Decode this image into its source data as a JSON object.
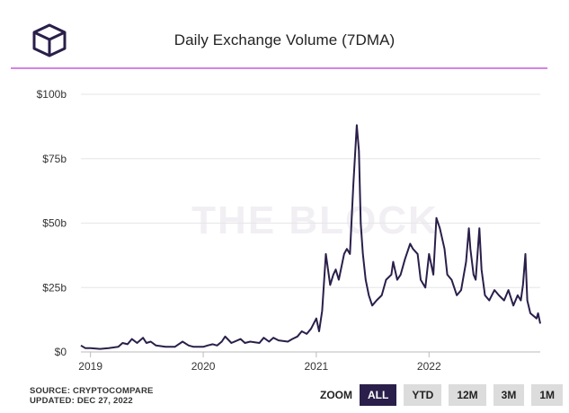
{
  "title": "Daily Exchange Volume (7DMA)",
  "watermark": "THE BLOCK",
  "colors": {
    "line": "#2a1f4a",
    "divider": "#d583e6",
    "grid": "#e6e6e6",
    "zoom_active": "#2a1f4a",
    "zoom_inactive": "#dcdcdc"
  },
  "source": {
    "line1": "SOURCE: CRYPTOCOMPARE",
    "line2": "UPDATED: DEC 27, 2022"
  },
  "zoom": {
    "label": "ZOOM",
    "buttons": [
      "ALL",
      "YTD",
      "12M",
      "3M",
      "1M"
    ],
    "active": "ALL"
  },
  "chart_data": {
    "type": "line",
    "title": "Daily Exchange Volume (7DMA)",
    "y_ticks": [
      "$0",
      "$25b",
      "$50b",
      "$75b",
      "$100b"
    ],
    "ylim": [
      0,
      100
    ],
    "x_ticks": [
      "2019",
      "2020",
      "2021",
      "2022"
    ],
    "xlim": [
      "2018-12-01",
      "2022-12-27"
    ],
    "grid": true,
    "series": [
      {
        "values_unit": "billions USD",
        "x": [
          "2018-12-01",
          "2018-12-15",
          "2019-01-01",
          "2019-02-01",
          "2019-03-01",
          "2019-04-01",
          "2019-04-15",
          "2019-05-01",
          "2019-05-15",
          "2019-06-01",
          "2019-06-20",
          "2019-07-01",
          "2019-07-15",
          "2019-08-01",
          "2019-09-01",
          "2019-10-01",
          "2019-10-26",
          "2019-11-15",
          "2019-12-01",
          "2020-01-01",
          "2020-01-15",
          "2020-02-01",
          "2020-02-15",
          "2020-03-01",
          "2020-03-12",
          "2020-04-01",
          "2020-05-01",
          "2020-05-15",
          "2020-06-01",
          "2020-07-01",
          "2020-07-15",
          "2020-08-01",
          "2020-08-15",
          "2020-09-01",
          "2020-10-01",
          "2020-10-15",
          "2020-11-01",
          "2020-11-15",
          "2020-12-01",
          "2020-12-15",
          "2021-01-01",
          "2021-01-10",
          "2021-01-20",
          "2021-02-01",
          "2021-02-15",
          "2021-02-25",
          "2021-03-05",
          "2021-03-15",
          "2021-04-01",
          "2021-04-10",
          "2021-04-20",
          "2021-05-01",
          "2021-05-12",
          "2021-05-19",
          "2021-05-25",
          "2021-06-01",
          "2021-06-10",
          "2021-06-20",
          "2021-07-01",
          "2021-07-15",
          "2021-08-01",
          "2021-08-15",
          "2021-09-01",
          "2021-09-07",
          "2021-09-20",
          "2021-10-01",
          "2021-10-15",
          "2021-11-01",
          "2021-11-10",
          "2021-11-25",
          "2021-12-05",
          "2021-12-20",
          "2022-01-01",
          "2022-01-15",
          "2022-01-25",
          "2022-02-05",
          "2022-02-20",
          "2022-03-01",
          "2022-03-15",
          "2022-04-01",
          "2022-04-15",
          "2022-05-01",
          "2022-05-10",
          "2022-05-15",
          "2022-05-25",
          "2022-06-01",
          "2022-06-13",
          "2022-06-20",
          "2022-07-01",
          "2022-07-15",
          "2022-08-01",
          "2022-08-15",
          "2022-09-01",
          "2022-09-15",
          "2022-10-01",
          "2022-10-15",
          "2022-10-25",
          "2022-11-01",
          "2022-11-09",
          "2022-11-15",
          "2022-11-25",
          "2022-12-05",
          "2022-12-15",
          "2022-12-20",
          "2022-12-27"
        ],
        "values": [
          2.5,
          1.5,
          1.5,
          1.2,
          1.5,
          2.0,
          3.5,
          3.0,
          5.0,
          3.5,
          5.5,
          3.5,
          4.0,
          2.5,
          2.0,
          2.0,
          4.0,
          2.5,
          2.0,
          2.0,
          2.5,
          3.0,
          2.5,
          4.0,
          6.0,
          3.5,
          5.0,
          3.5,
          4.0,
          3.5,
          5.5,
          4.0,
          5.5,
          4.5,
          4.0,
          5.0,
          6.0,
          8.0,
          7.0,
          9.0,
          13.0,
          8.0,
          16.0,
          38.0,
          26.0,
          30.0,
          32.0,
          28.0,
          38.0,
          40.0,
          38.0,
          65.0,
          88.0,
          78.0,
          50.0,
          38.0,
          28.0,
          22.0,
          18.0,
          20.0,
          22.0,
          28.0,
          30.0,
          35.0,
          28.0,
          30.0,
          36.0,
          42.0,
          40.0,
          38.0,
          28.0,
          25.0,
          38.0,
          30.0,
          52.0,
          48.0,
          40.0,
          30.0,
          28.0,
          22.0,
          24.0,
          35.0,
          48.0,
          40.0,
          30.0,
          28.0,
          48.0,
          32.0,
          22.0,
          20.0,
          24.0,
          22.0,
          20.0,
          24.0,
          18.0,
          22.0,
          20.0,
          26.0,
          38.0,
          20.0,
          15.0,
          14.0,
          13.0,
          15.0,
          11.0
        ]
      }
    ]
  }
}
